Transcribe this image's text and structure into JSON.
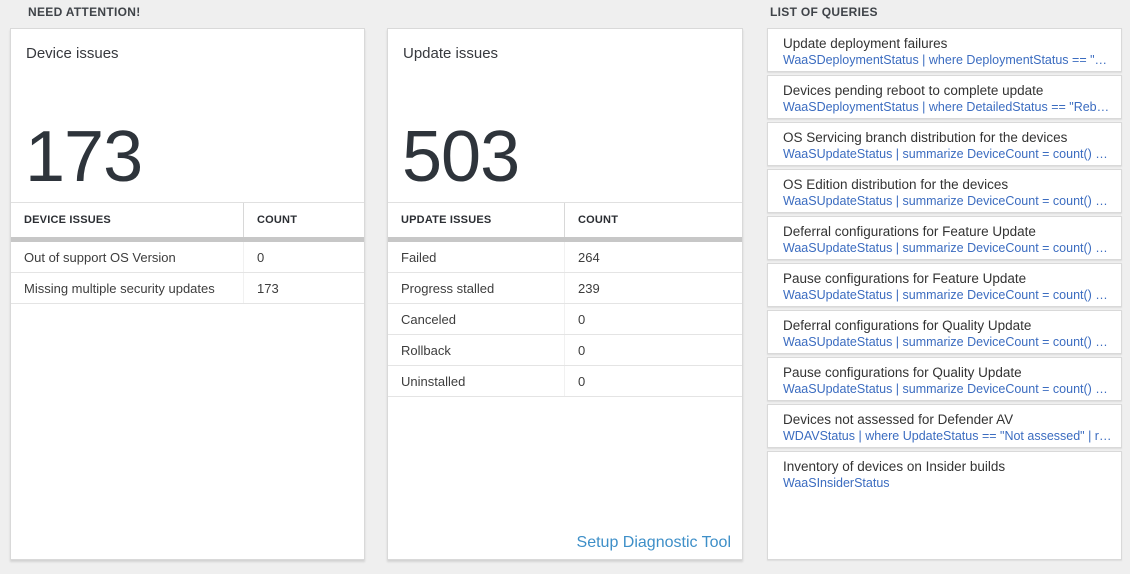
{
  "headers": {
    "need_attention": "NEED ATTENTION!",
    "list_of_queries": "LIST OF QUERIES"
  },
  "device_card": {
    "title": "Device issues",
    "count": "173",
    "table": {
      "col1": "DEVICE ISSUES",
      "col2": "COUNT",
      "rows": [
        {
          "label": "Out of support OS Version",
          "count": "0"
        },
        {
          "label": "Missing multiple security updates",
          "count": "173"
        }
      ]
    }
  },
  "update_card": {
    "title": "Update issues",
    "count": "503",
    "table": {
      "col1": "UPDATE ISSUES",
      "col2": "COUNT",
      "rows": [
        {
          "label": "Failed",
          "count": "264"
        },
        {
          "label": "Progress stalled",
          "count": "239"
        },
        {
          "label": "Canceled",
          "count": "0"
        },
        {
          "label": "Rollback",
          "count": "0"
        },
        {
          "label": "Uninstalled",
          "count": "0"
        }
      ]
    },
    "footer_link": "Setup Diagnostic Tool"
  },
  "queries": [
    {
      "title": "Update deployment failures",
      "query": "WaaSDeploymentStatus | where DeploymentStatus == \"Failed\" |..."
    },
    {
      "title": "Devices pending reboot to complete update",
      "query": "WaaSDeploymentStatus | where DetailedStatus == \"Reboot pend..."
    },
    {
      "title": "OS Servicing branch distribution for the devices",
      "query": "WaaSUpdateStatus | summarize DeviceCount = count() by OSSer..."
    },
    {
      "title": "OS Edition distribution for the devices",
      "query": "WaaSUpdateStatus | summarize DeviceCount = count() by OSEdit..."
    },
    {
      "title": "Deferral configurations for Feature Update",
      "query": "WaaSUpdateStatus | summarize DeviceCount = count() by Featur..."
    },
    {
      "title": "Pause configurations for Feature Update",
      "query": "WaaSUpdateStatus | summarize DeviceCount = count() by Featur..."
    },
    {
      "title": "Deferral configurations for Quality Update",
      "query": "WaaSUpdateStatus | summarize DeviceCount = count() by Qualit..."
    },
    {
      "title": "Pause configurations for Quality Update",
      "query": "WaaSUpdateStatus | summarize DeviceCount = count() by Qualit..."
    },
    {
      "title": "Devices not assessed for Defender AV",
      "query": "WDAVStatus | where UpdateStatus == \"Not assessed\" | render ta..."
    },
    {
      "title": "Inventory of devices on Insider builds",
      "query": "WaaSInsiderStatus"
    }
  ],
  "colors": {
    "page_background": "#efefef",
    "query_link_blue": "#3b6cc0",
    "setup_link_blue": "#3e8fc8",
    "big_number_dark": "#2e343b",
    "table_separator_bar": "#c7c7c7"
  }
}
